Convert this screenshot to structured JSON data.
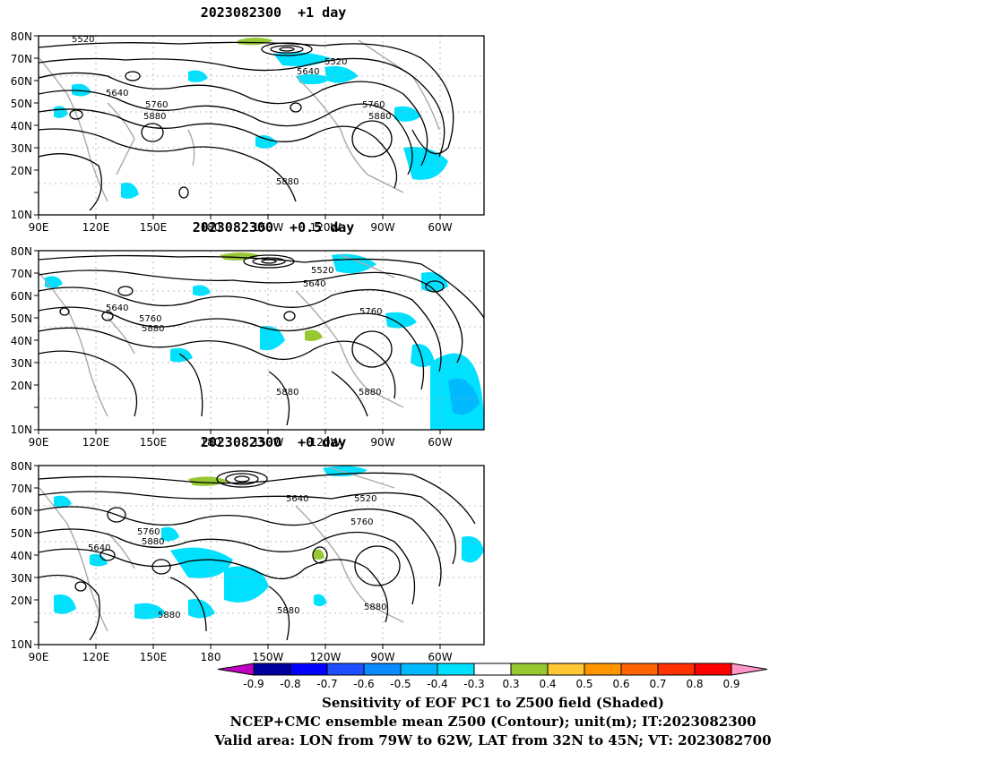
{
  "panels": [
    {
      "title": "2023082300  +1 day",
      "contour_labels": [
        "5520",
        "5640",
        "5520",
        "5640",
        "5760",
        "5880",
        "5760",
        "5880",
        "5880"
      ]
    },
    {
      "title": "2023082300  +0.5 day",
      "contour_labels": [
        "5520",
        "5640",
        "5640",
        "5760",
        "5880",
        "5760",
        "5880",
        "5880"
      ]
    },
    {
      "title": "2023082300  +0 day",
      "contour_labels": [
        "5640",
        "5520",
        "5760",
        "5640",
        "5760",
        "5880",
        "5880",
        "5880",
        "5880"
      ]
    }
  ],
  "axes": {
    "lat_labels": [
      "80N",
      "70N",
      "60N",
      "50N",
      "40N",
      "30N",
      "20N",
      "10N"
    ],
    "lon_labels": [
      "90E",
      "120E",
      "150E",
      "180",
      "150W",
      "120W",
      "90W",
      "60W"
    ]
  },
  "colorbar": {
    "ticks": [
      "-0.9",
      "-0.8",
      "-0.7",
      "-0.6",
      "-0.5",
      "-0.4",
      "-0.3",
      "0.3",
      "0.4",
      "0.5",
      "0.6",
      "0.7",
      "0.8",
      "0.9"
    ],
    "colors": [
      "#c000c0",
      "#0000a0",
      "#0000ff",
      "#1e50ff",
      "#0a8cff",
      "#00b9ff",
      "#00e1ff",
      "#ffffff",
      "#96c832",
      "#ffc832",
      "#ff9600",
      "#ff6400",
      "#ff3200",
      "#ff0000",
      "#ff96c8"
    ]
  },
  "captions": {
    "line1": "Sensitivity of EOF PC1 to Z500 field (Shaded)",
    "line2": "NCEP+CMC ensemble mean Z500 (Contour); unit(m); IT:2023082300",
    "line3": "Valid area: LON from 79W to 62W, LAT from 32N to 45N; VT: 2023082700"
  }
}
